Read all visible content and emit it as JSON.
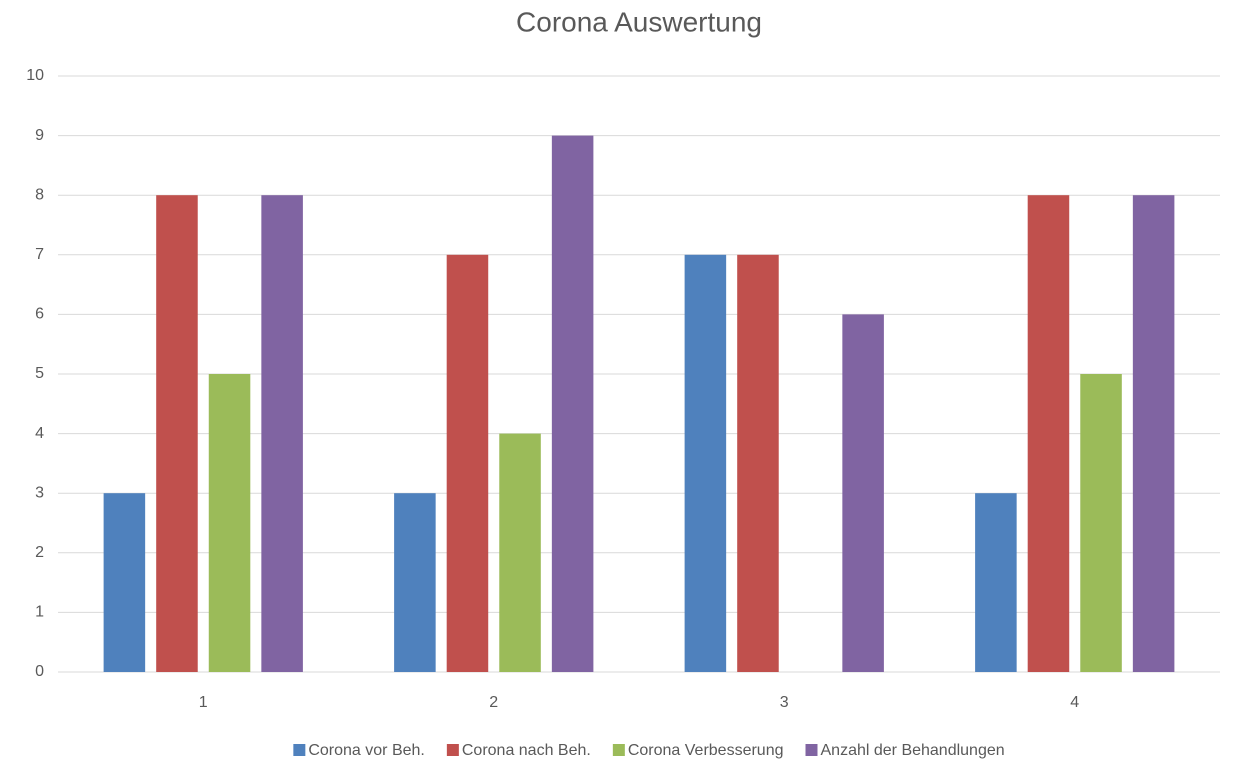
{
  "chart_data": {
    "type": "bar",
    "title": "Corona Auswertung",
    "categories": [
      "1",
      "2",
      "3",
      "4"
    ],
    "series": [
      {
        "name": "Corona vor Beh.",
        "color": "#4f81bd",
        "values": [
          3,
          3,
          7,
          3
        ]
      },
      {
        "name": "Corona nach Beh.",
        "color": "#c0504d",
        "values": [
          8,
          7,
          7,
          8
        ]
      },
      {
        "name": "Corona Verbesserung",
        "color": "#9bbb59",
        "values": [
          5,
          4,
          0,
          5
        ]
      },
      {
        "name": "Anzahl der Behandlungen",
        "color": "#8064a2",
        "values": [
          8,
          9,
          6,
          8
        ]
      }
    ],
    "ylim": [
      0,
      10
    ],
    "yticks": [
      0,
      1,
      2,
      3,
      4,
      5,
      6,
      7,
      8,
      9,
      10
    ],
    "grid": true,
    "legend": "bottom"
  }
}
